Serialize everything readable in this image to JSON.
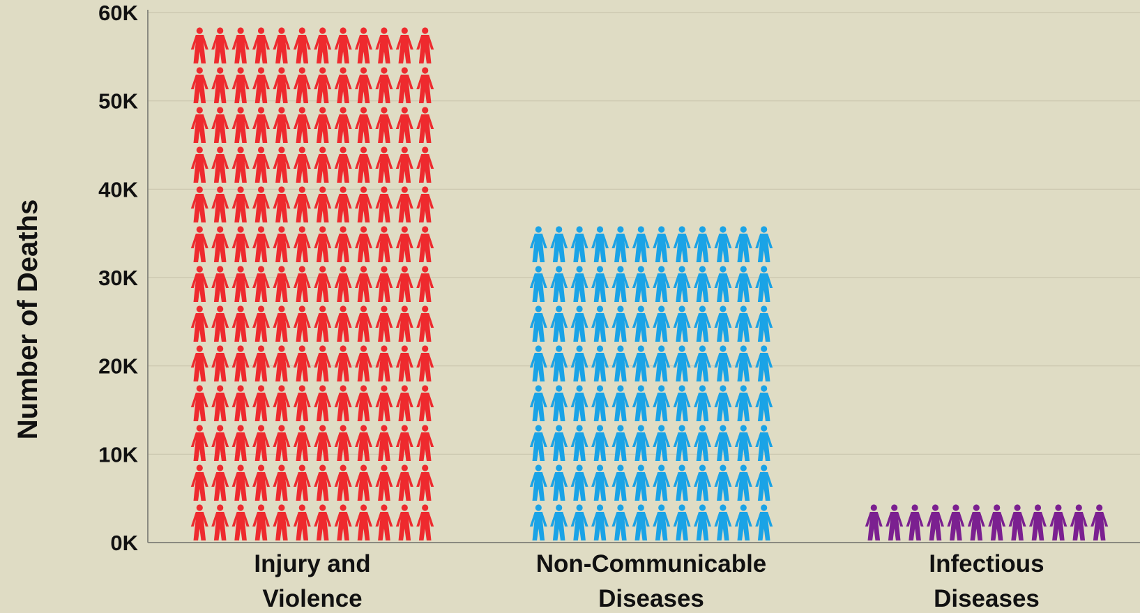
{
  "chart_data": {
    "type": "bar",
    "style": "pictogram",
    "title": "",
    "xlabel": "",
    "ylabel": "Number of Deaths",
    "ylim": [
      0,
      60000
    ],
    "yticks": [
      0,
      10000,
      20000,
      30000,
      40000,
      50000,
      60000
    ],
    "ytick_labels": [
      "0K",
      "10K",
      "20K",
      "30K",
      "40K",
      "50K",
      "60K"
    ],
    "grid": true,
    "categories": [
      {
        "lines": [
          "Injury and",
          "Violence"
        ]
      },
      {
        "lines": [
          "Non-Communicable",
          "Diseases"
        ]
      },
      {
        "lines": [
          "Infectious",
          "Diseases"
        ]
      }
    ],
    "values": [
      58000,
      35000,
      4000
    ],
    "colors": [
      "#ee2a2e",
      "#1aa3e6",
      "#7b2090"
    ],
    "icon": "person-icon",
    "icons_per_row": 12,
    "units_per_row": 4500
  }
}
